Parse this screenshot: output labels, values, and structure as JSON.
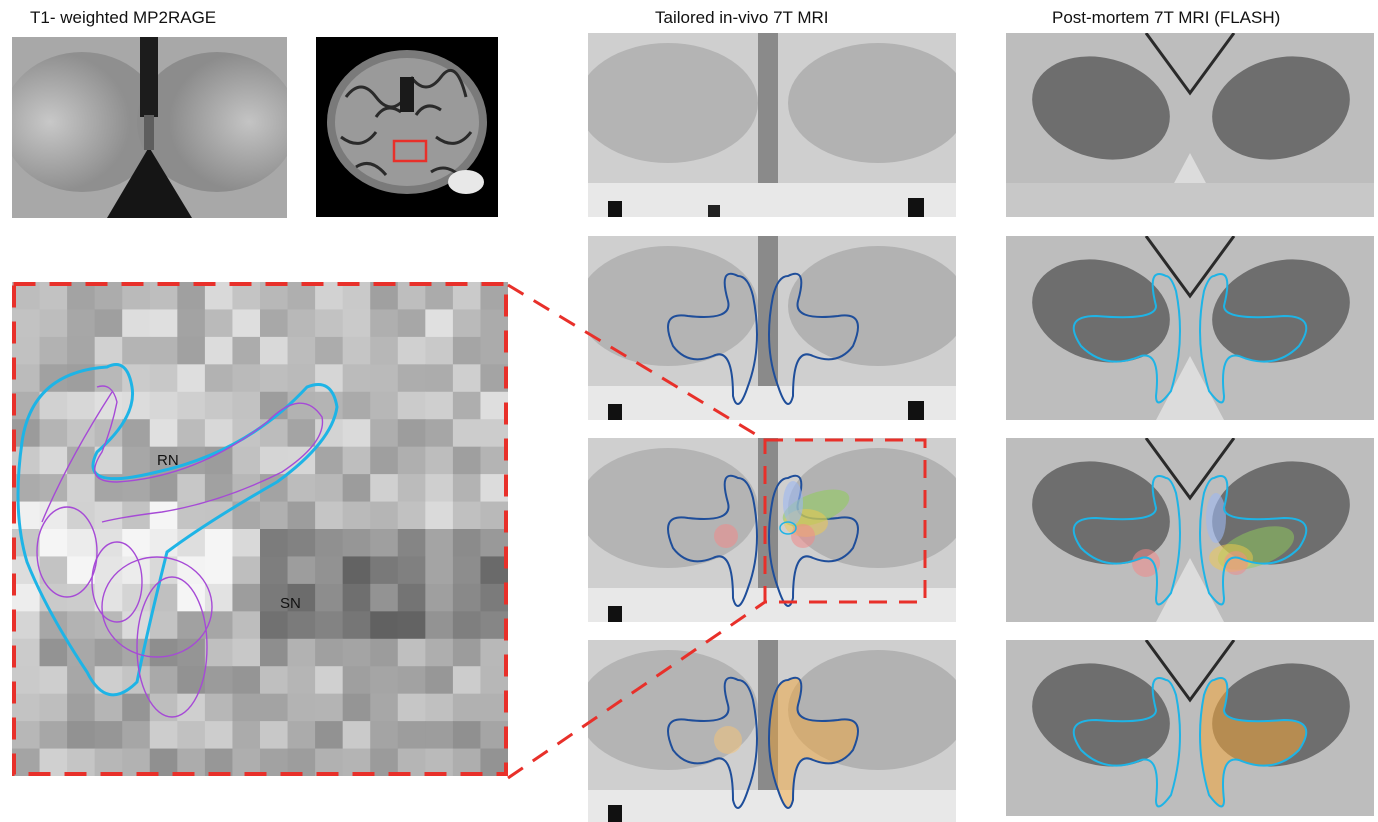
{
  "titles": {
    "col1": "T1- weighted MP2RAGE",
    "col2": "Tailored in-vivo 7T MRI",
    "col3": "Post-mortem 7T MRI (FLASH)"
  },
  "labels": {
    "rn": "RN",
    "sn": "SN"
  },
  "colors": {
    "red_dash": "#e8302a",
    "cyan": "#1eb4e6",
    "navy": "#1f4e9a",
    "purple": "#a64ad6",
    "orange": "#f2a53a"
  }
}
